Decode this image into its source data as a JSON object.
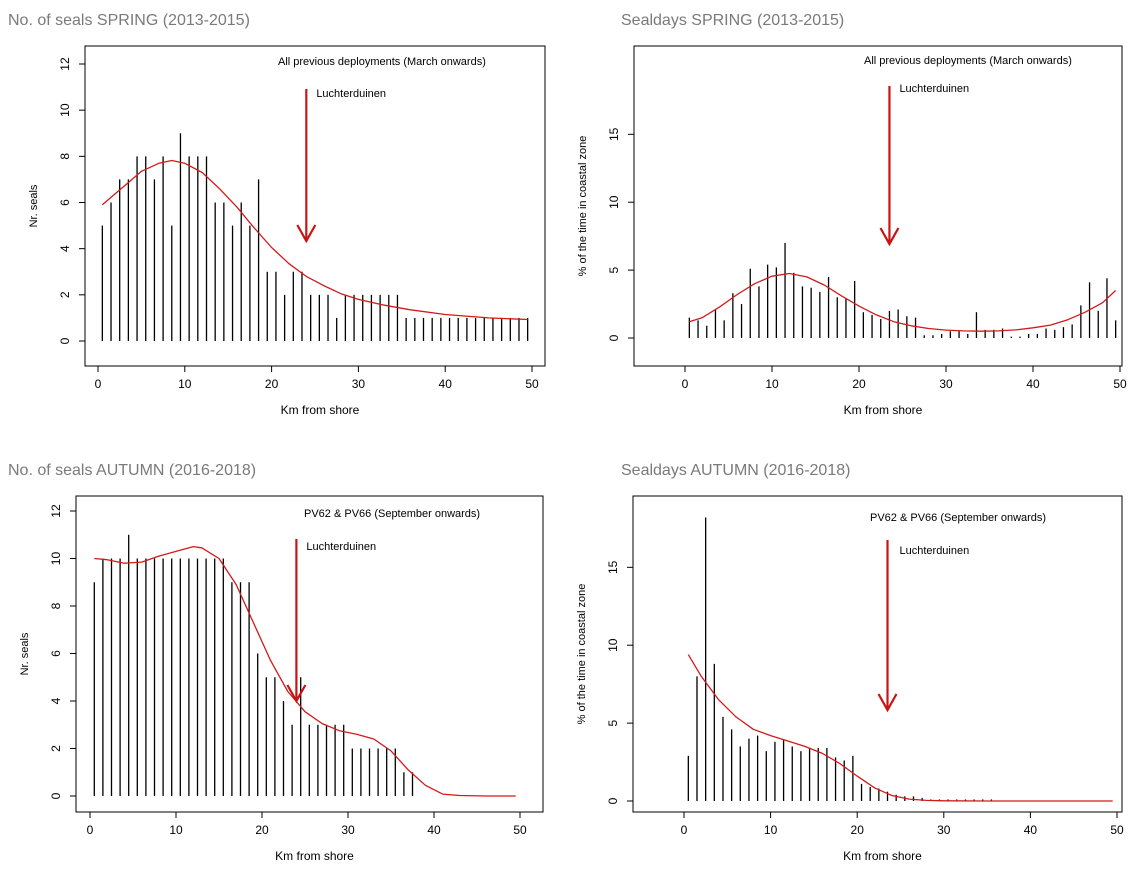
{
  "page": {
    "headings": [
      "No. of seals SPRING (2013-2015)",
      "Sealdays  SPRING (2013-2015)",
      "No. of seals AUTUMN (2016-2018)",
      "Sealdays  AUTUMN (2016-2018)"
    ]
  },
  "colors": {
    "bars": "#000000",
    "curve": "#d21a1a",
    "arrow": "#c81414",
    "axis": "#000000",
    "heading": "#7a7a7a"
  },
  "chart_data": [
    {
      "type": "bar",
      "title": "No. of seals SPRING (2013-2015)",
      "annotation": "All previous deployments (March onwards)",
      "marker_label": "Luchterduinen",
      "marker_x": 24,
      "xlabel": "Km from shore",
      "ylabel": "Nr. seals",
      "xlim": [
        0,
        50
      ],
      "ylim": [
        0,
        12
      ],
      "xticks": [
        0,
        10,
        20,
        30,
        40,
        50
      ],
      "yticks": [
        0,
        2,
        4,
        6,
        8,
        10,
        12
      ],
      "x": [
        0.5,
        1.5,
        2.5,
        3.5,
        4.5,
        5.5,
        6.5,
        7.5,
        8.5,
        9.5,
        10.5,
        11.5,
        12.5,
        13.5,
        14.5,
        15.5,
        16.5,
        17.5,
        18.5,
        19.5,
        20.5,
        21.5,
        22.5,
        23.5,
        24.5,
        25.5,
        26.5,
        27.5,
        28.5,
        29.5,
        30.5,
        31.5,
        32.5,
        33.5,
        34.5,
        35.5,
        36.5,
        37.5,
        38.5,
        39.5,
        40.5,
        41.5,
        42.5,
        43.5,
        44.5,
        45.5,
        46.5,
        47.5,
        48.5,
        49.5
      ],
      "values": [
        5,
        6,
        7,
        7,
        8,
        8,
        7,
        8,
        5,
        9,
        8,
        8,
        8,
        6,
        6,
        5,
        6,
        5,
        7,
        3,
        3,
        2,
        3,
        3,
        2,
        2,
        2,
        1,
        2,
        2,
        2,
        2,
        2,
        2,
        2,
        1,
        1,
        1,
        1,
        1,
        1,
        1,
        1,
        1,
        1,
        1,
        1,
        1,
        1,
        1
      ],
      "smooth": [
        [
          0.5,
          5.9
        ],
        [
          3,
          6.7
        ],
        [
          5,
          7.35
        ],
        [
          7,
          7.7
        ],
        [
          8.5,
          7.82
        ],
        [
          10,
          7.7
        ],
        [
          12,
          7.3
        ],
        [
          14,
          6.6
        ],
        [
          16,
          5.8
        ],
        [
          18,
          4.9
        ],
        [
          20,
          4.05
        ],
        [
          22,
          3.35
        ],
        [
          24,
          2.8
        ],
        [
          26,
          2.4
        ],
        [
          28,
          2.05
        ],
        [
          30,
          1.8
        ],
        [
          33,
          1.55
        ],
        [
          36,
          1.35
        ],
        [
          40,
          1.15
        ],
        [
          45,
          1.0
        ],
        [
          49.5,
          0.93
        ]
      ]
    },
    {
      "type": "bar",
      "title": "Sealdays  SPRING (2013-2015)",
      "annotation": "All previous deployments (March onwards)",
      "marker_label": "Luchterduinen",
      "marker_x": 23.5,
      "xlabel": "Km from shore",
      "ylabel": "% of the time in coastal zone",
      "xlim": [
        0,
        50
      ],
      "ylim": [
        0,
        19
      ],
      "xticks": [
        0,
        10,
        20,
        30,
        40,
        50
      ],
      "yticks": [
        0,
        5,
        10,
        15
      ],
      "x": [
        0.5,
        1.5,
        2.5,
        3.5,
        4.5,
        5.5,
        6.5,
        7.5,
        8.5,
        9.5,
        10.5,
        11.5,
        12.5,
        13.5,
        14.5,
        15.5,
        16.5,
        17.5,
        18.5,
        19.5,
        20.5,
        21.5,
        22.5,
        23.5,
        24.5,
        25.5,
        26.5,
        27.5,
        28.5,
        29.5,
        30.5,
        31.5,
        32.5,
        33.5,
        34.5,
        35.5,
        36.5,
        37.5,
        38.5,
        39.5,
        40.5,
        41.5,
        42.5,
        43.5,
        44.5,
        45.5,
        46.5,
        47.5,
        48.5,
        49.5
      ],
      "values": [
        1.5,
        1.3,
        0.9,
        2.1,
        1.3,
        3.3,
        2.5,
        5.1,
        3.8,
        5.4,
        5.2,
        7.0,
        4.8,
        3.8,
        3.7,
        3.4,
        4.5,
        3.0,
        2.9,
        4.2,
        1.9,
        1.7,
        1.4,
        2.0,
        2.1,
        1.6,
        1.5,
        0.2,
        0.2,
        0.3,
        0.5,
        0.5,
        0.3,
        1.9,
        0.6,
        0.6,
        0.7,
        0.1,
        0.1,
        0.3,
        0.3,
        0.7,
        0.6,
        0.8,
        1.0,
        2.4,
        4.1,
        2.0,
        4.4,
        1.3
      ],
      "smooth": [
        [
          0.5,
          1.2
        ],
        [
          2,
          1.5
        ],
        [
          4,
          2.3
        ],
        [
          6,
          3.2
        ],
        [
          8,
          4.0
        ],
        [
          10,
          4.55
        ],
        [
          12,
          4.75
        ],
        [
          14,
          4.5
        ],
        [
          16,
          3.9
        ],
        [
          18,
          3.1
        ],
        [
          20,
          2.35
        ],
        [
          22,
          1.7
        ],
        [
          24,
          1.2
        ],
        [
          26,
          0.9
        ],
        [
          28,
          0.7
        ],
        [
          30,
          0.58
        ],
        [
          32,
          0.52
        ],
        [
          34,
          0.5
        ],
        [
          36,
          0.52
        ],
        [
          38,
          0.6
        ],
        [
          40,
          0.75
        ],
        [
          42,
          0.95
        ],
        [
          44,
          1.35
        ],
        [
          46,
          1.9
        ],
        [
          48,
          2.6
        ],
        [
          49.5,
          3.5
        ]
      ]
    },
    {
      "type": "bar",
      "title": "No. of seals AUTUMN (2016-2018)",
      "annotation": "PV62 & PV66 (September onwards)",
      "marker_label": "Luchterduinen",
      "marker_x": 24,
      "xlabel": "Km from shore",
      "ylabel": "Nr. seals",
      "xlim": [
        0,
        50
      ],
      "ylim": [
        0,
        12
      ],
      "xticks": [
        0,
        10,
        20,
        30,
        40,
        50
      ],
      "yticks": [
        0,
        2,
        4,
        6,
        8,
        10,
        12
      ],
      "x": [
        0.5,
        1.5,
        2.5,
        3.5,
        4.5,
        5.5,
        6.5,
        7.5,
        8.5,
        9.5,
        10.5,
        11.5,
        12.5,
        13.5,
        14.5,
        15.5,
        16.5,
        17.5,
        18.5,
        19.5,
        20.5,
        21.5,
        22.5,
        23.5,
        24.5,
        25.5,
        26.5,
        27.5,
        28.5,
        29.5,
        30.5,
        31.5,
        32.5,
        33.5,
        34.5,
        35.5,
        36.5,
        37.5
      ],
      "values": [
        9,
        10,
        10,
        10,
        11,
        10,
        10,
        10,
        10,
        10,
        10,
        10,
        10,
        10,
        10,
        10,
        9,
        9,
        9,
        6,
        5,
        5,
        4,
        3,
        5,
        3,
        3,
        3,
        3,
        3,
        2,
        2,
        2,
        2,
        2,
        2,
        1,
        1
      ],
      "smooth": [
        [
          0.5,
          10.0
        ],
        [
          2,
          9.95
        ],
        [
          4,
          9.8
        ],
        [
          6,
          9.85
        ],
        [
          8,
          10.1
        ],
        [
          10,
          10.3
        ],
        [
          12,
          10.5
        ],
        [
          13,
          10.45
        ],
        [
          15,
          10.0
        ],
        [
          17,
          8.9
        ],
        [
          19,
          7.3
        ],
        [
          21,
          5.7
        ],
        [
          23,
          4.4
        ],
        [
          25,
          3.55
        ],
        [
          27,
          3.05
        ],
        [
          29,
          2.75
        ],
        [
          31,
          2.6
        ],
        [
          33,
          2.4
        ],
        [
          35,
          1.9
        ],
        [
          37,
          1.1
        ],
        [
          39,
          0.45
        ],
        [
          41,
          0.08
        ],
        [
          43,
          0.02
        ],
        [
          46,
          0.0
        ],
        [
          49.5,
          0.0
        ]
      ]
    },
    {
      "type": "bar",
      "title": "Sealdays  AUTUMN (2016-2018)",
      "annotation": "PV62 & PV66 (September onwards)",
      "marker_label": "Luchterduinen",
      "marker_x": 23.5,
      "xlabel": "Km from shore",
      "ylabel": "% of the time in coastal zone",
      "xlim": [
        0,
        50
      ],
      "ylim": [
        0,
        19
      ],
      "xticks": [
        0,
        10,
        20,
        30,
        40,
        50
      ],
      "yticks": [
        0,
        5,
        10,
        15
      ],
      "x": [
        0.5,
        1.5,
        2.5,
        3.5,
        4.5,
        5.5,
        6.5,
        7.5,
        8.5,
        9.5,
        10.5,
        11.5,
        12.5,
        13.5,
        14.5,
        15.5,
        16.5,
        17.5,
        18.5,
        19.5,
        20.5,
        21.5,
        22.5,
        23.5,
        24.5,
        25.5,
        26.5,
        27.5,
        28.5,
        29.5,
        30.5,
        31.5,
        32.5,
        33.5,
        34.5,
        35.5
      ],
      "values": [
        2.9,
        8.0,
        18.2,
        8.8,
        5.4,
        4.6,
        3.5,
        4.0,
        4.2,
        3.2,
        3.8,
        3.9,
        3.5,
        3.2,
        3.4,
        3.4,
        3.4,
        2.8,
        2.6,
        2.9,
        1.1,
        0.9,
        0.8,
        0.6,
        0.4,
        0.3,
        0.3,
        0.2,
        0.1,
        0.1,
        0.1,
        0.1,
        0.1,
        0.1,
        0.1,
        0.1
      ],
      "smooth": [
        [
          0.5,
          9.4
        ],
        [
          2,
          8.0
        ],
        [
          4,
          6.5
        ],
        [
          6,
          5.4
        ],
        [
          8,
          4.6
        ],
        [
          10,
          4.2
        ],
        [
          12,
          3.85
        ],
        [
          14,
          3.5
        ],
        [
          16,
          3.05
        ],
        [
          18,
          2.4
        ],
        [
          20,
          1.6
        ],
        [
          22,
          0.85
        ],
        [
          24,
          0.35
        ],
        [
          26,
          0.12
        ],
        [
          28,
          0.04
        ],
        [
          30,
          0.01
        ],
        [
          35,
          0.0
        ],
        [
          40,
          0.0
        ],
        [
          49.5,
          0.0
        ]
      ]
    }
  ]
}
